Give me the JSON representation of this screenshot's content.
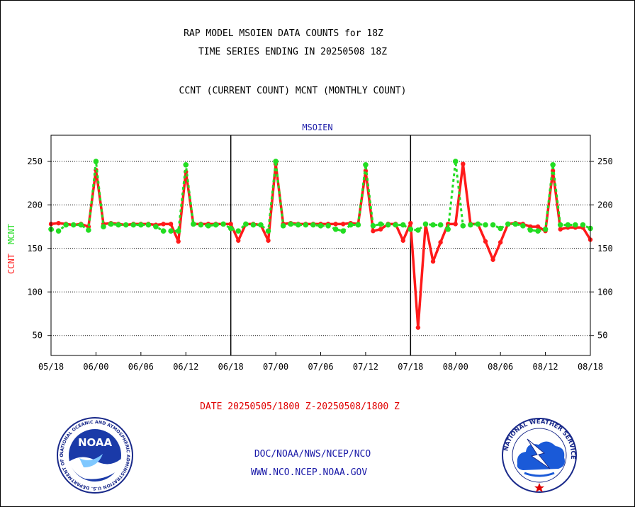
{
  "header": {
    "line1": "RAP MODEL MSOIEN DATA COUNTS for 18Z",
    "line2": "TIME SERIES ENDING IN 20250508 18Z",
    "line3": "CCNT (CURRENT COUNT) MCNT (MONTHLY COUNT)"
  },
  "footer": {
    "date_range": "DATE 20250505/1800 Z-20250508/1800 Z",
    "org": "DOC/NOAA/NWS/NCEP/NCO",
    "url": "WWW.NCO.NCEP.NOAA.GOV"
  },
  "logos": {
    "left_icon": "noaa-logo-icon",
    "left_text": "NOAA",
    "left_ring": "NATIONAL OCEANIC AND ATMOSPHERIC ADMINISTRATION U.S. DEPARTMENT OF COMMERCE",
    "right_icon": "national-weather-service-logo-icon",
    "right_ring": "NATIONAL WEATHER SERVICE"
  },
  "colors": {
    "ccnt": "#ff1a1a",
    "mcnt": "#22dd22",
    "title_blue": "#1a1aa8",
    "date_red": "#e00000"
  },
  "chart_data": {
    "type": "line",
    "title": "MSOIEN",
    "ylabel_parts": [
      "CCNT",
      "MCNT"
    ],
    "ylim": [
      27,
      280
    ],
    "yticks": [
      50,
      100,
      150,
      200,
      250
    ],
    "xlim": [
      0,
      72
    ],
    "xticks": [
      0,
      6,
      12,
      18,
      24,
      30,
      36,
      42,
      48,
      54,
      60,
      66,
      72
    ],
    "xtick_labels": [
      "05/18",
      "06/00",
      "06/06",
      "06/12",
      "06/18",
      "07/00",
      "07/06",
      "07/12",
      "07/18",
      "08/00",
      "08/06",
      "08/12",
      "08/18"
    ],
    "day_dividers": [
      24,
      48
    ],
    "grid": "dotted-horizontal",
    "series": [
      {
        "name": "CCNT",
        "color": "#ff1a1a",
        "x": [
          0,
          1,
          2,
          3,
          4,
          5,
          6,
          7,
          8,
          9,
          10,
          11,
          12,
          13,
          14,
          15,
          16,
          17,
          18,
          19,
          20,
          21,
          22,
          23,
          24,
          25,
          26,
          27,
          28,
          29,
          30,
          31,
          32,
          33,
          34,
          35,
          36,
          37,
          38,
          39,
          40,
          41,
          42,
          43,
          44,
          45,
          46,
          47,
          48,
          49,
          50,
          51,
          52,
          53,
          54,
          55,
          56,
          57,
          58,
          59,
          60,
          61,
          62,
          63,
          64,
          65,
          66,
          67,
          68,
          69,
          70,
          71,
          72
        ],
        "values": [
          178,
          179,
          178,
          177,
          178,
          175,
          240,
          178,
          179,
          178,
          177,
          178,
          178,
          178,
          177,
          178,
          178,
          158,
          238,
          178,
          178,
          178,
          178,
          178,
          178,
          159,
          178,
          178,
          177,
          159,
          247,
          178,
          179,
          178,
          178,
          178,
          178,
          178,
          178,
          178,
          179,
          178,
          239,
          170,
          172,
          178,
          178,
          159,
          179,
          59,
          178,
          135,
          157,
          178,
          178,
          247,
          178,
          178,
          158,
          137,
          157,
          178,
          179,
          178,
          175,
          175,
          170,
          239,
          172,
          174,
          174,
          174,
          160
        ]
      },
      {
        "name": "MCNT",
        "color": "#22dd22",
        "x": [
          0,
          1,
          2,
          3,
          4,
          5,
          6,
          7,
          8,
          9,
          10,
          11,
          12,
          13,
          14,
          15,
          16,
          17,
          18,
          19,
          20,
          21,
          22,
          23,
          24,
          25,
          26,
          27,
          28,
          29,
          30,
          31,
          32,
          33,
          34,
          35,
          36,
          37,
          38,
          39,
          40,
          41,
          42,
          43,
          44,
          45,
          46,
          47,
          48,
          49,
          50,
          51,
          52,
          53,
          54,
          55,
          56,
          57,
          58,
          59,
          60,
          61,
          62,
          63,
          64,
          65,
          66,
          67,
          68,
          69,
          70,
          71,
          72
        ],
        "values": [
          172,
          170,
          177,
          177,
          177,
          171,
          250,
          175,
          178,
          177,
          177,
          177,
          177,
          177,
          175,
          170,
          170,
          170,
          246,
          178,
          177,
          176,
          177,
          178,
          173,
          170,
          178,
          177,
          177,
          170,
          250,
          176,
          178,
          177,
          177,
          177,
          176,
          176,
          172,
          170,
          177,
          177,
          246,
          176,
          178,
          177,
          177,
          177,
          172,
          171,
          178,
          177,
          177,
          172,
          250,
          176,
          177,
          178,
          177,
          177,
          173,
          178,
          178,
          176,
          171,
          170,
          172,
          246,
          177,
          177,
          177,
          177,
          173
        ]
      }
    ]
  }
}
